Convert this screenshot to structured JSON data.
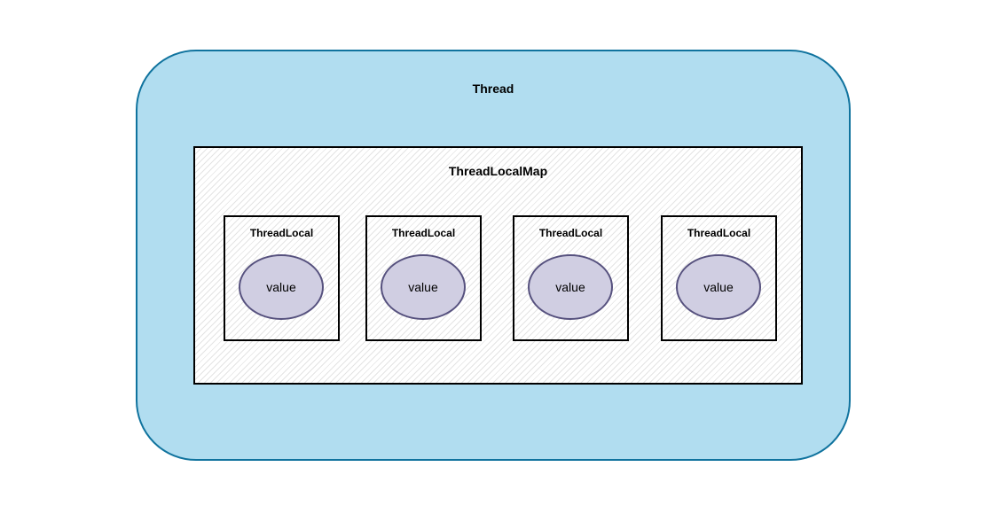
{
  "diagram": {
    "thread": {
      "label": "Thread",
      "fill": "#b1ddf0",
      "stroke": "#10739e"
    },
    "thread_local_map": {
      "label": "ThreadLocalMap"
    },
    "thread_locals": [
      {
        "label": "ThreadLocal",
        "value": "value"
      },
      {
        "label": "ThreadLocal",
        "value": "value"
      },
      {
        "label": "ThreadLocal",
        "value": "value"
      },
      {
        "label": "ThreadLocal",
        "value": "value"
      }
    ],
    "value_fill": "#d0cee2",
    "value_stroke": "#56517e"
  }
}
